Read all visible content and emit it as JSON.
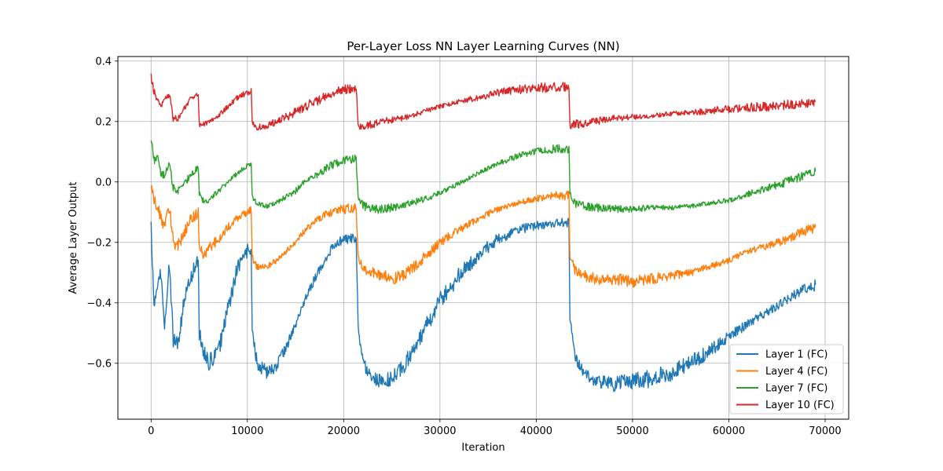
{
  "chart_data": {
    "type": "line",
    "title": "Per-Layer Loss NN Layer Learning Curves (NN)",
    "xlabel": "Iteration",
    "ylabel": "Average Layer Output",
    "xlim": [
      -3450,
      72450
    ],
    "ylim": [
      -0.785,
      0.415
    ],
    "xticks": [
      0,
      10000,
      20000,
      30000,
      40000,
      50000,
      60000,
      70000
    ],
    "xtick_labels": [
      "0",
      "10000",
      "20000",
      "30000",
      "40000",
      "50000",
      "60000",
      "70000"
    ],
    "yticks": [
      -0.6,
      -0.4,
      -0.2,
      0.0,
      0.2,
      0.4
    ],
    "ytick_labels": [
      "−0.6",
      "−0.4",
      "−0.2",
      "0.0",
      "0.2",
      "0.4"
    ],
    "grid": true,
    "legend_position": "lower right",
    "series": [
      {
        "name": "Layer 1 (FC)",
        "color": "#1f77b4",
        "x": [
          0,
          300,
          700,
          1000,
          1400,
          1900,
          2300,
          2800,
          3400,
          4000,
          4600,
          4900,
          5000,
          5400,
          6000,
          7000,
          8000,
          9000,
          10000,
          10400,
          10500,
          11000,
          12000,
          13000,
          14000,
          15000,
          16000,
          17000,
          18000,
          19000,
          20000,
          21000,
          21300,
          21500,
          22000,
          23000,
          24000,
          25000,
          26000,
          27000,
          28000,
          29000,
          30000,
          32000,
          34000,
          36000,
          38000,
          40000,
          42000,
          43400,
          43500,
          44000,
          45000,
          46000,
          48000,
          50000,
          52000,
          54000,
          56000,
          58000,
          60000,
          62000,
          64000,
          66000,
          68000,
          69000
        ],
        "values": [
          -0.14,
          -0.42,
          -0.33,
          -0.3,
          -0.48,
          -0.27,
          -0.52,
          -0.53,
          -0.4,
          -0.33,
          -0.28,
          -0.25,
          -0.5,
          -0.56,
          -0.6,
          -0.56,
          -0.42,
          -0.28,
          -0.23,
          -0.22,
          -0.5,
          -0.6,
          -0.63,
          -0.61,
          -0.55,
          -0.47,
          -0.39,
          -0.32,
          -0.26,
          -0.21,
          -0.19,
          -0.185,
          -0.19,
          -0.48,
          -0.6,
          -0.65,
          -0.66,
          -0.65,
          -0.62,
          -0.57,
          -0.51,
          -0.45,
          -0.39,
          -0.31,
          -0.24,
          -0.19,
          -0.16,
          -0.145,
          -0.135,
          -0.135,
          -0.45,
          -0.58,
          -0.63,
          -0.66,
          -0.67,
          -0.66,
          -0.65,
          -0.63,
          -0.6,
          -0.56,
          -0.51,
          -0.47,
          -0.43,
          -0.39,
          -0.35,
          -0.34
        ],
        "noise": 0.022
      },
      {
        "name": "Layer 4 (FC)",
        "color": "#ff7f0e",
        "x": [
          0,
          300,
          700,
          1000,
          1400,
          1900,
          2300,
          2800,
          3400,
          4000,
          4600,
          4900,
          5000,
          5400,
          6000,
          7000,
          8000,
          9000,
          10000,
          10400,
          10500,
          11000,
          12000,
          13000,
          14000,
          15000,
          16000,
          17000,
          18000,
          19000,
          20000,
          21000,
          21300,
          21500,
          22000,
          23000,
          24000,
          25000,
          26000,
          27000,
          28000,
          29000,
          30000,
          32000,
          34000,
          36000,
          38000,
          40000,
          42000,
          43400,
          43500,
          44000,
          45000,
          46000,
          48000,
          50000,
          52000,
          54000,
          56000,
          58000,
          60000,
          62000,
          64000,
          66000,
          68000,
          69000
        ],
        "values": [
          -0.02,
          -0.06,
          -0.08,
          -0.12,
          -0.15,
          -0.08,
          -0.2,
          -0.21,
          -0.17,
          -0.13,
          -0.11,
          -0.1,
          -0.2,
          -0.24,
          -0.22,
          -0.19,
          -0.15,
          -0.12,
          -0.1,
          -0.09,
          -0.25,
          -0.28,
          -0.28,
          -0.26,
          -0.23,
          -0.2,
          -0.16,
          -0.13,
          -0.11,
          -0.095,
          -0.09,
          -0.085,
          -0.09,
          -0.25,
          -0.29,
          -0.3,
          -0.31,
          -0.32,
          -0.31,
          -0.29,
          -0.26,
          -0.23,
          -0.2,
          -0.16,
          -0.12,
          -0.09,
          -0.07,
          -0.055,
          -0.045,
          -0.045,
          -0.25,
          -0.29,
          -0.31,
          -0.32,
          -0.32,
          -0.33,
          -0.32,
          -0.31,
          -0.3,
          -0.28,
          -0.26,
          -0.23,
          -0.21,
          -0.19,
          -0.16,
          -0.15
        ],
        "noise": 0.015
      },
      {
        "name": "Layer 7 (FC)",
        "color": "#2ca02c",
        "x": [
          0,
          300,
          700,
          1000,
          1400,
          1900,
          2300,
          2800,
          3400,
          4000,
          4600,
          4900,
          5000,
          5400,
          6000,
          7000,
          8000,
          9000,
          10000,
          10400,
          10500,
          11000,
          12000,
          13000,
          14000,
          15000,
          16000,
          17000,
          18000,
          19000,
          20000,
          21000,
          21300,
          21500,
          22000,
          23000,
          24000,
          25000,
          26000,
          27000,
          28000,
          29000,
          30000,
          32000,
          34000,
          36000,
          38000,
          40000,
          42000,
          43400,
          43500,
          44000,
          45000,
          46000,
          48000,
          50000,
          52000,
          54000,
          56000,
          58000,
          60000,
          62000,
          64000,
          66000,
          68000,
          69000
        ],
        "values": [
          0.14,
          0.07,
          0.08,
          0.03,
          0.02,
          0.06,
          -0.02,
          -0.03,
          -0.01,
          0.02,
          0.04,
          0.05,
          -0.04,
          -0.06,
          -0.06,
          -0.03,
          0.0,
          0.03,
          0.055,
          0.06,
          -0.05,
          -0.07,
          -0.08,
          -0.07,
          -0.05,
          -0.03,
          0.0,
          0.02,
          0.04,
          0.06,
          0.07,
          0.075,
          0.075,
          -0.05,
          -0.08,
          -0.09,
          -0.09,
          -0.085,
          -0.08,
          -0.07,
          -0.06,
          -0.05,
          -0.035,
          -0.005,
          0.03,
          0.06,
          0.085,
          0.1,
          0.11,
          0.11,
          -0.04,
          -0.07,
          -0.08,
          -0.085,
          -0.09,
          -0.09,
          -0.085,
          -0.085,
          -0.08,
          -0.07,
          -0.06,
          -0.04,
          -0.02,
          0.0,
          0.025,
          0.035
        ],
        "noise": 0.011
      },
      {
        "name": "Layer 10 (FC)",
        "color": "#d62728",
        "x": [
          0,
          300,
          700,
          1000,
          1400,
          1900,
          2300,
          2800,
          3400,
          4000,
          4600,
          4900,
          5000,
          5400,
          6000,
          7000,
          8000,
          9000,
          10000,
          10400,
          10500,
          11000,
          12000,
          13000,
          14000,
          15000,
          16000,
          17000,
          18000,
          19000,
          20000,
          21000,
          21300,
          21500,
          22000,
          23000,
          24000,
          25000,
          26000,
          27000,
          28000,
          29000,
          30000,
          32000,
          34000,
          36000,
          38000,
          40000,
          42000,
          43400,
          43500,
          44000,
          45000,
          46000,
          48000,
          50000,
          52000,
          54000,
          56000,
          58000,
          60000,
          62000,
          64000,
          66000,
          68000,
          69000
        ],
        "values": [
          0.35,
          0.3,
          0.27,
          0.25,
          0.28,
          0.29,
          0.21,
          0.21,
          0.24,
          0.27,
          0.285,
          0.29,
          0.19,
          0.19,
          0.2,
          0.22,
          0.25,
          0.28,
          0.295,
          0.3,
          0.2,
          0.18,
          0.185,
          0.2,
          0.215,
          0.23,
          0.25,
          0.265,
          0.28,
          0.295,
          0.305,
          0.31,
          0.31,
          0.18,
          0.185,
          0.19,
          0.2,
          0.205,
          0.21,
          0.22,
          0.23,
          0.24,
          0.25,
          0.265,
          0.28,
          0.295,
          0.305,
          0.31,
          0.315,
          0.315,
          0.18,
          0.19,
          0.195,
          0.2,
          0.21,
          0.215,
          0.22,
          0.225,
          0.23,
          0.235,
          0.24,
          0.245,
          0.25,
          0.255,
          0.26,
          0.265
        ],
        "noise": 0.012
      }
    ]
  }
}
